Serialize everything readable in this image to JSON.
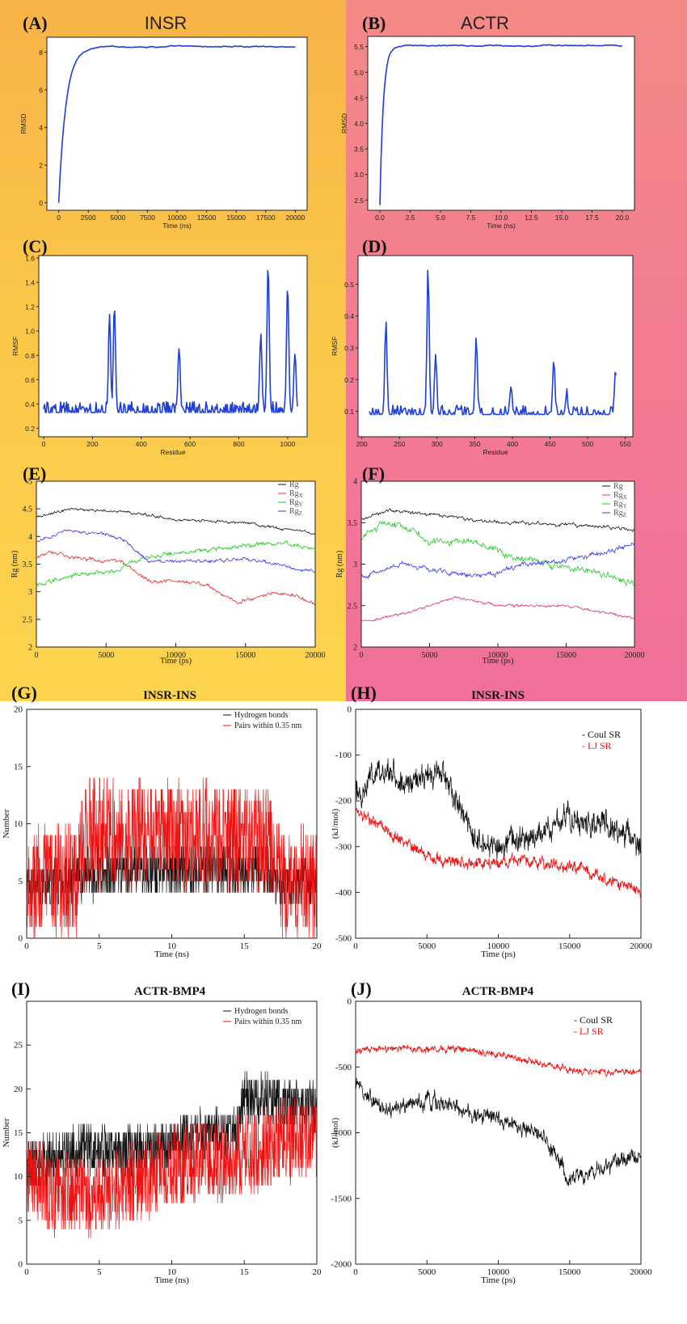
{
  "chart_data": [
    {
      "id": "A",
      "label": "(A)",
      "title": "INSR",
      "type": "line",
      "xlabel": "Time (ns)",
      "ylabel": "RMSD",
      "xlim": [
        -1000,
        21000
      ],
      "ylim": [
        -0.4,
        8.8
      ],
      "xticks": [
        "0",
        "2500",
        "5000",
        "7500",
        "10000",
        "12500",
        "15000",
        "17500",
        "20000"
      ],
      "yticks": [
        "0",
        "2",
        "4",
        "6",
        "8"
      ],
      "series": [
        {
          "name": "RMSD",
          "color": "#1f3fd6",
          "shape": "saturating",
          "start": 0.0,
          "end": 8.3,
          "rate": 0.0016,
          "drift": 1e-05,
          "noise": 0.03,
          "xmin": 0,
          "xmax": 20000
        }
      ]
    },
    {
      "id": "B",
      "label": "(B)",
      "title": "ACTR",
      "type": "line",
      "xlabel": "Time (ns)",
      "ylabel": "RMSD",
      "xlim": [
        -1.0,
        21.0
      ],
      "ylim": [
        2.3,
        5.7
      ],
      "xticks": [
        "0.0",
        "2.5",
        "5.0",
        "7.5",
        "10.0",
        "12.5",
        "15.0",
        "17.5",
        "20.0"
      ],
      "yticks": [
        "2.5",
        "3.0",
        "3.5",
        "4.0",
        "4.5",
        "5.0",
        "5.5"
      ],
      "series": [
        {
          "name": "RMSD",
          "color": "#1f3fd6",
          "shape": "saturating",
          "start": 2.4,
          "end": 5.52,
          "rate": 3.5,
          "drift": 0.0,
          "noise": 0.012,
          "xmin": 0,
          "xmax": 20
        }
      ]
    },
    {
      "id": "C",
      "label": "(C)",
      "type": "line",
      "xlabel": "Residue",
      "ylabel": "RMSF",
      "xlim": [
        -20,
        1080
      ],
      "ylim": [
        0.13,
        1.62
      ],
      "xticks": [
        "0",
        "200",
        "400",
        "600",
        "800",
        "1000"
      ],
      "yticks": [
        "0.2",
        "0.4",
        "0.6",
        "0.8",
        "1.0",
        "1.2",
        "1.4",
        "1.6"
      ],
      "series": [
        {
          "name": "RMSF",
          "color": "#1f3fd6",
          "shape": "spiky",
          "n": 300,
          "xmin": 0,
          "xmax": 1040,
          "base": 0.33,
          "noise": 0.09,
          "peaks": [
            [
              270,
              1.1
            ],
            [
              290,
              1.2
            ],
            [
              555,
              0.88
            ],
            [
              890,
              1.0
            ],
            [
              920,
              1.55
            ],
            [
              1000,
              1.38
            ],
            [
              1030,
              0.83
            ]
          ]
        }
      ]
    },
    {
      "id": "D",
      "label": "(D)",
      "type": "line",
      "xlabel": "Residue",
      "ylabel": "RMSF",
      "xlim": [
        195,
        560
      ],
      "ylim": [
        0.02,
        0.59
      ],
      "xticks": [
        "200",
        "250",
        "300",
        "350",
        "400",
        "450",
        "500",
        "550"
      ],
      "yticks": [
        "0.1",
        "0.2",
        "0.3",
        "0.4",
        "0.5"
      ],
      "series": [
        {
          "name": "RMSF",
          "color": "#1f3fd6",
          "shape": "spiky",
          "n": 220,
          "xmin": 210,
          "xmax": 538,
          "base": 0.09,
          "noise": 0.03,
          "peaks": [
            [
              232,
              0.38
            ],
            [
              288,
              0.57
            ],
            [
              298,
              0.29
            ],
            [
              352,
              0.34
            ],
            [
              398,
              0.19
            ],
            [
              455,
              0.26
            ],
            [
              472,
              0.16
            ],
            [
              537,
              0.24
            ]
          ]
        }
      ]
    },
    {
      "id": "E",
      "label": "(E)",
      "type": "line",
      "xlabel": "Time (ps)",
      "ylabel": "Rg (nm)",
      "xlim": [
        0,
        20000
      ],
      "ylim": [
        2,
        5
      ],
      "xticks": [
        "0",
        "5000",
        "10000",
        "15000",
        "20000"
      ],
      "yticks": [
        "2",
        "2.5",
        "3",
        "3.5",
        "4",
        "4.5",
        "5"
      ],
      "legend": [
        "Rg",
        "RgX",
        "RgY",
        "RgZ"
      ],
      "series": [
        {
          "name": "Rg",
          "color": "#111111",
          "shape": "path",
          "n": 400,
          "xmin": 0,
          "xmax": 20000,
          "noise": 0.03,
          "points": [
            [
              0,
              4.35
            ],
            [
              2500,
              4.5
            ],
            [
              6500,
              4.45
            ],
            [
              10000,
              4.3
            ],
            [
              15000,
              4.25
            ],
            [
              20000,
              4.05
            ]
          ]
        },
        {
          "name": "RgX",
          "color": "#e82a2a",
          "shape": "path",
          "n": 400,
          "xmin": 0,
          "xmax": 20000,
          "noise": 0.04,
          "points": [
            [
              0,
              3.6
            ],
            [
              1000,
              3.75
            ],
            [
              3000,
              3.6
            ],
            [
              6000,
              3.55
            ],
            [
              8000,
              3.2
            ],
            [
              12000,
              3.15
            ],
            [
              14500,
              2.8
            ],
            [
              17000,
              3.0
            ],
            [
              19000,
              2.9
            ],
            [
              20000,
              2.75
            ]
          ]
        },
        {
          "name": "RgY",
          "color": "#22cc22",
          "shape": "path",
          "n": 400,
          "xmin": 0,
          "xmax": 20000,
          "noise": 0.05,
          "points": [
            [
              0,
              3.1
            ],
            [
              2500,
              3.3
            ],
            [
              6000,
              3.4
            ],
            [
              7500,
              3.6
            ],
            [
              10000,
              3.7
            ],
            [
              14000,
              3.8
            ],
            [
              17000,
              3.9
            ],
            [
              20000,
              3.8
            ]
          ]
        },
        {
          "name": "RgZ",
          "color": "#3a3aee",
          "shape": "path",
          "n": 400,
          "xmin": 0,
          "xmax": 20000,
          "noise": 0.04,
          "points": [
            [
              0,
              3.9
            ],
            [
              2000,
              4.1
            ],
            [
              5000,
              4.05
            ],
            [
              6500,
              3.9
            ],
            [
              8000,
              3.55
            ],
            [
              11000,
              3.55
            ],
            [
              15000,
              3.6
            ],
            [
              18000,
              3.45
            ],
            [
              20000,
              3.35
            ]
          ]
        }
      ]
    },
    {
      "id": "F",
      "label": "(F)",
      "type": "line",
      "xlabel": "Time (ps)",
      "ylabel": "Rg (nm)",
      "xlim": [
        0,
        20000
      ],
      "ylim": [
        2,
        4
      ],
      "xticks": [
        "0",
        "5000",
        "10000",
        "15000",
        "20000"
      ],
      "yticks": [
        "2",
        "2.5",
        "3",
        "3.5",
        "4"
      ],
      "legend": [
        "Rg",
        "RgX",
        "RgY",
        "RgZ"
      ],
      "series": [
        {
          "name": "Rg",
          "color": "#111111",
          "shape": "path",
          "n": 400,
          "xmin": 0,
          "xmax": 20000,
          "noise": 0.025,
          "points": [
            [
              0,
              3.55
            ],
            [
              2000,
              3.65
            ],
            [
              5000,
              3.6
            ],
            [
              10000,
              3.5
            ],
            [
              15000,
              3.48
            ],
            [
              20000,
              3.42
            ]
          ]
        },
        {
          "name": "RgX",
          "color": "#e0306a",
          "shape": "path",
          "n": 400,
          "xmin": 0,
          "xmax": 20000,
          "noise": 0.02,
          "points": [
            [
              0,
              2.3
            ],
            [
              3000,
              2.4
            ],
            [
              7000,
              2.6
            ],
            [
              10000,
              2.5
            ],
            [
              15000,
              2.5
            ],
            [
              20000,
              2.35
            ]
          ]
        },
        {
          "name": "RgY",
          "color": "#22cc22",
          "shape": "path",
          "n": 400,
          "xmin": 0,
          "xmax": 20000,
          "noise": 0.05,
          "points": [
            [
              0,
              3.3
            ],
            [
              1500,
              3.5
            ],
            [
              3500,
              3.45
            ],
            [
              5000,
              3.25
            ],
            [
              8000,
              3.3
            ],
            [
              11000,
              3.1
            ],
            [
              14000,
              3.0
            ],
            [
              17000,
              2.9
            ],
            [
              20000,
              2.75
            ]
          ]
        },
        {
          "name": "RgZ",
          "color": "#3a3aee",
          "shape": "path",
          "n": 400,
          "xmin": 0,
          "xmax": 20000,
          "noise": 0.04,
          "points": [
            [
              0,
              2.85
            ],
            [
              3000,
              3.0
            ],
            [
              6000,
              2.9
            ],
            [
              9000,
              2.85
            ],
            [
              12000,
              3.0
            ],
            [
              15000,
              3.05
            ],
            [
              18000,
              3.15
            ],
            [
              20000,
              3.25
            ]
          ]
        }
      ]
    },
    {
      "id": "G",
      "label": "(G)",
      "title": "INSR-INS",
      "type": "line",
      "xlabel": "Time (ns)",
      "ylabel": "Number",
      "xlim": [
        0,
        20
      ],
      "ylim": [
        0,
        20
      ],
      "xticks": [
        "0",
        "5",
        "10",
        "15",
        "20"
      ],
      "yticks": [
        "0",
        "5",
        "10",
        "15",
        "20"
      ],
      "legend": [
        "Hydrogen bonds",
        "Pairs within 0.35 nm"
      ],
      "series": [
        {
          "name": "Hydrogen bonds",
          "color": "#111111",
          "shape": "discrete",
          "n": 1000,
          "xmin": 0,
          "xmax": 20,
          "noise": 1.3,
          "points": [
            [
              0,
              4.5
            ],
            [
              4,
              5.5
            ],
            [
              10,
              6
            ],
            [
              17,
              6
            ],
            [
              17.5,
              4.5
            ],
            [
              20,
              5
            ]
          ]
        },
        {
          "name": "Pairs within 0.35 nm",
          "color": "#ee1111",
          "shape": "discrete",
          "n": 1000,
          "xmin": 0,
          "xmax": 20,
          "noise": 3.0,
          "points": [
            [
              0,
              5
            ],
            [
              3.5,
              5
            ],
            [
              4,
              9
            ],
            [
              10,
              9
            ],
            [
              17,
              8.5
            ],
            [
              17.5,
              5
            ],
            [
              20,
              5
            ]
          ]
        }
      ]
    },
    {
      "id": "H",
      "label": "(H)",
      "title": "INSR-INS",
      "type": "line",
      "xlabel": "Time (ps)",
      "ylabel": "(kJ/mol)",
      "xlim": [
        0,
        20000
      ],
      "ylim": [
        -500,
        0
      ],
      "xticks": [
        "0",
        "5000",
        "10000",
        "15000",
        "20000"
      ],
      "yticks": [
        "0",
        "-100",
        "-200",
        "-300",
        "-400",
        "-500"
      ],
      "legend": [
        "Coul SR",
        "LJ SR"
      ],
      "series": [
        {
          "name": "Coul SR",
          "color": "#111111",
          "shape": "path",
          "n": 900,
          "xmin": 0,
          "xmax": 20000,
          "noise": 32,
          "points": [
            [
              0,
              -180
            ],
            [
              2000,
              -130
            ],
            [
              4000,
              -170
            ],
            [
              6000,
              -130
            ],
            [
              7500,
              -230
            ],
            [
              9000,
              -300
            ],
            [
              12000,
              -280
            ],
            [
              15000,
              -240
            ],
            [
              18000,
              -260
            ],
            [
              20000,
              -290
            ]
          ]
        },
        {
          "name": "LJ SR",
          "color": "#ee1111",
          "shape": "path",
          "n": 900,
          "xmin": 0,
          "xmax": 20000,
          "noise": 14,
          "points": [
            [
              0,
              -220
            ],
            [
              2000,
              -260
            ],
            [
              5000,
              -320
            ],
            [
              8000,
              -340
            ],
            [
              12000,
              -330
            ],
            [
              16000,
              -350
            ],
            [
              20000,
              -400
            ]
          ]
        }
      ]
    },
    {
      "id": "I",
      "label": "(I)",
      "title": "ACTR-BMP4",
      "type": "line",
      "xlabel": "Time (ns)",
      "ylabel": "Number",
      "xlim": [
        0,
        20
      ],
      "ylim": [
        0,
        30
      ],
      "xticks": [
        "0",
        "5",
        "10",
        "15",
        "20"
      ],
      "yticks": [
        "0",
        "5",
        "10",
        "15",
        "20",
        "25"
      ],
      "legend": [
        "Hydrogen bonds",
        "Pairs within 0.35 nm"
      ],
      "series": [
        {
          "name": "Hydrogen bonds",
          "color": "#111111",
          "shape": "discrete",
          "n": 1000,
          "xmin": 0,
          "xmax": 20,
          "noise": 1.8,
          "points": [
            [
              0,
              11
            ],
            [
              3,
              13
            ],
            [
              9,
              13
            ],
            [
              12,
              15
            ],
            [
              14.5,
              15
            ],
            [
              15,
              19
            ],
            [
              20,
              18
            ]
          ]
        },
        {
          "name": "Pairs within 0.35 nm",
          "color": "#ee1111",
          "shape": "discrete",
          "n": 1000,
          "xmin": 0,
          "xmax": 20,
          "noise": 3.0,
          "points": [
            [
              0,
              10
            ],
            [
              2,
              8
            ],
            [
              5,
              8
            ],
            [
              10,
              11
            ],
            [
              14,
              12
            ],
            [
              20,
              15
            ]
          ]
        }
      ]
    },
    {
      "id": "J",
      "label": "(J)",
      "title": "ACTR-BMP4",
      "type": "line",
      "xlabel": "Time (ps)",
      "ylabel": "(kJ/mol)",
      "xlim": [
        0,
        20000
      ],
      "ylim": [
        -2000,
        0
      ],
      "xticks": [
        "0",
        "5000",
        "10000",
        "15000",
        "20000"
      ],
      "yticks": [
        "0",
        "-500",
        "-1000",
        "-1500",
        "-2000"
      ],
      "legend": [
        "Coul SR",
        "LJ SR"
      ],
      "series": [
        {
          "name": "Coul SR",
          "color": "#111111",
          "shape": "path",
          "n": 900,
          "xmin": 0,
          "xmax": 20000,
          "noise": 70,
          "points": [
            [
              0,
              -650
            ],
            [
              2000,
              -850
            ],
            [
              5000,
              -750
            ],
            [
              10000,
              -900
            ],
            [
              13000,
              -1000
            ],
            [
              15000,
              -1350
            ],
            [
              17000,
              -1300
            ],
            [
              20000,
              -1150
            ]
          ]
        },
        {
          "name": "LJ SR",
          "color": "#ee1111",
          "shape": "path",
          "n": 900,
          "xmin": 0,
          "xmax": 20000,
          "noise": 28,
          "points": [
            [
              0,
              -380
            ],
            [
              4000,
              -360
            ],
            [
              8000,
              -370
            ],
            [
              12000,
              -450
            ],
            [
              16000,
              -540
            ],
            [
              20000,
              -530
            ]
          ]
        }
      ]
    }
  ]
}
